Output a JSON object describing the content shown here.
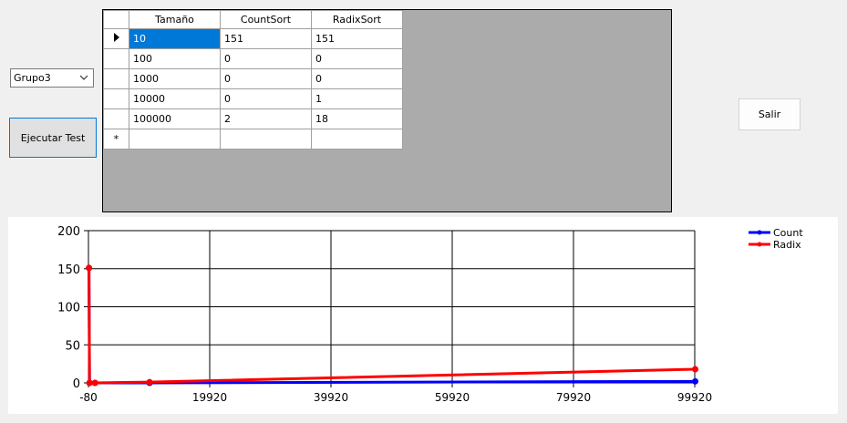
{
  "combo": {
    "selected": "Grupo3"
  },
  "buttons": {
    "run_label": "Ejecutar Test",
    "exit_label": "Salir"
  },
  "grid": {
    "headers": [
      "Tamaño",
      "CountSort",
      "RadixSort"
    ],
    "rows": [
      [
        "10",
        "151",
        "151"
      ],
      [
        "100",
        "0",
        "0"
      ],
      [
        "1000",
        "0",
        "0"
      ],
      [
        "10000",
        "0",
        "1"
      ],
      [
        "100000",
        "2",
        "18"
      ]
    ],
    "new_row_marker": "*"
  },
  "chart_data": {
    "type": "line",
    "x": [
      10,
      100,
      1000,
      10000,
      100000
    ],
    "series": [
      {
        "name": "Count",
        "values": [
          151,
          0,
          0,
          0,
          2
        ],
        "color": "#0000ff"
      },
      {
        "name": "Radix",
        "values": [
          151,
          0,
          0,
          1,
          18
        ],
        "color": "#ff0000"
      }
    ],
    "xlim": [
      -80,
      99920
    ],
    "ylim": [
      0,
      200
    ],
    "xticks": [
      -80,
      19920,
      39920,
      59920,
      79920,
      99920
    ],
    "yticks": [
      0,
      50,
      100,
      150,
      200
    ],
    "grid": true,
    "legend_position": "top-right"
  }
}
